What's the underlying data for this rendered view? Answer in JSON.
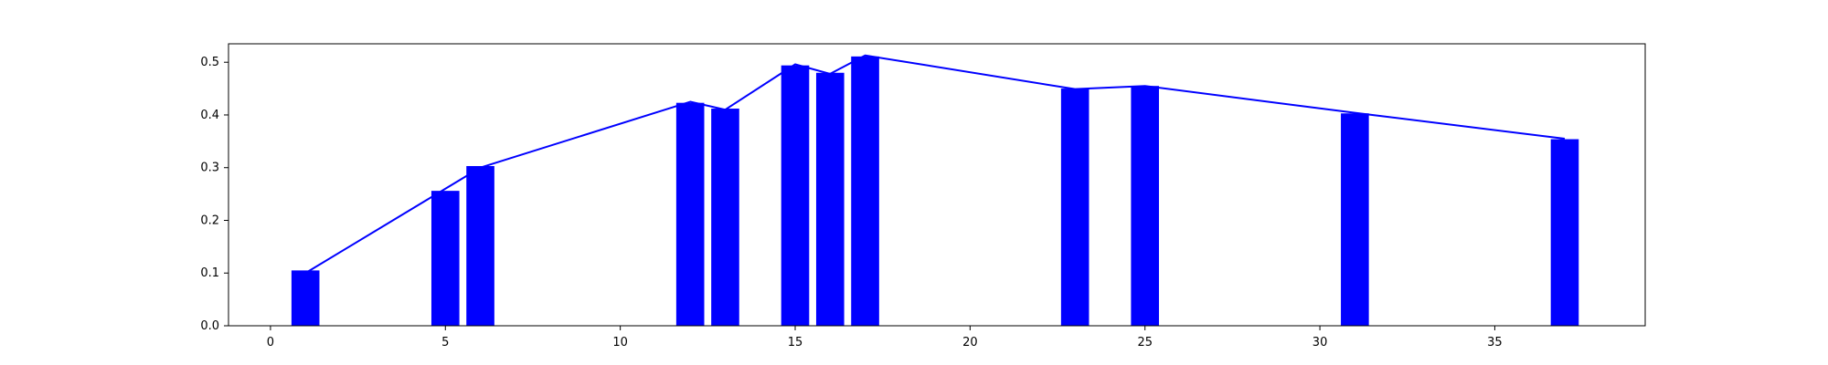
{
  "colors": {
    "background": "#ffffff",
    "bar": "#0000ff",
    "line": "#0000ff",
    "axis": "#000000"
  },
  "chart_data": {
    "type": "bar",
    "title": "",
    "xlabel": "",
    "ylabel": "",
    "xlim": [
      -1.2,
      39.3
    ],
    "ylim": [
      0,
      0.535
    ],
    "xticks": [
      0,
      5,
      10,
      15,
      20,
      25,
      30,
      35
    ],
    "yticks": [
      0.0,
      0.1,
      0.2,
      0.3,
      0.4,
      0.5
    ],
    "grid": false,
    "bar_width": 0.8,
    "series": [
      {
        "kind": "bar",
        "color": "#0000ff",
        "x": [
          1,
          5,
          6,
          12,
          13,
          15,
          16,
          17,
          23,
          25,
          31,
          37
        ],
        "values": [
          0.105,
          0.256,
          0.303,
          0.423,
          0.412,
          0.494,
          0.48,
          0.511,
          0.45,
          0.455,
          0.403,
          0.354
        ]
      },
      {
        "kind": "line",
        "color": "#0000ff",
        "x": [
          1,
          6,
          12,
          13,
          15,
          16,
          17,
          23,
          25,
          31,
          37
        ],
        "values": [
          0.1,
          0.3,
          0.425,
          0.41,
          0.496,
          0.478,
          0.513,
          0.449,
          0.455,
          0.404,
          0.355
        ]
      }
    ]
  }
}
